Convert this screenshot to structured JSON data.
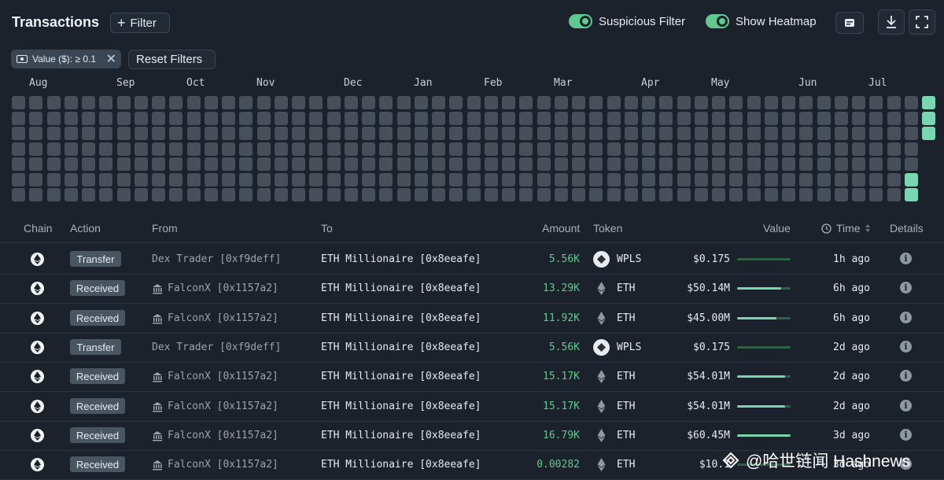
{
  "header": {
    "title": "Transactions",
    "filter_label": "Filter",
    "suspicious_filter_label": "Suspicious Filter",
    "show_heatmap_label": "Show Heatmap",
    "suspicious_filter_on": true,
    "show_heatmap_on": true
  },
  "filters": {
    "chip_label": "Value ($): ≥ 0.1",
    "reset_label": "Reset Filters"
  },
  "heatmap": {
    "months": [
      "Aug",
      "Sep",
      "Oct",
      "Nov",
      "Dec",
      "Jan",
      "Feb",
      "Mar",
      "Apr",
      "May",
      "Jun",
      "Jul"
    ],
    "hot_color": "#7ad6b0",
    "empty_color": "#464f5a"
  },
  "table": {
    "headers": {
      "chain": "Chain",
      "action": "Action",
      "from": "From",
      "to": "To",
      "amount": "Amount",
      "token": "Token",
      "value": "Value",
      "time": "Time",
      "details": "Details"
    },
    "rows": [
      {
        "action": "Transfer",
        "from": "Dex Trader [0xf9deff]",
        "from_icon": "",
        "to": "ETH Millionaire [0x8eeafe]",
        "amount": "5.56K",
        "token": "WPLS",
        "value": "$0.175",
        "value_fraction": 0.0,
        "time": "1h ago"
      },
      {
        "action": "Received",
        "from": "FalconX [0x1157a2]",
        "from_icon": "bank-icon",
        "to": "ETH Millionaire [0x8eeafe]",
        "amount": "13.29K",
        "token": "ETH",
        "value": "$50.14M",
        "value_fraction": 0.83,
        "time": "6h ago"
      },
      {
        "action": "Received",
        "from": "FalconX [0x1157a2]",
        "from_icon": "bank-icon",
        "to": "ETH Millionaire [0x8eeafe]",
        "amount": "11.92K",
        "token": "ETH",
        "value": "$45.00M",
        "value_fraction": 0.74,
        "time": "6h ago"
      },
      {
        "action": "Transfer",
        "from": "Dex Trader [0xf9deff]",
        "from_icon": "",
        "to": "ETH Millionaire [0x8eeafe]",
        "amount": "5.56K",
        "token": "WPLS",
        "value": "$0.175",
        "value_fraction": 0.0,
        "time": "2d ago"
      },
      {
        "action": "Received",
        "from": "FalconX [0x1157a2]",
        "from_icon": "bank-icon",
        "to": "ETH Millionaire [0x8eeafe]",
        "amount": "15.17K",
        "token": "ETH",
        "value": "$54.01M",
        "value_fraction": 0.9,
        "time": "2d ago"
      },
      {
        "action": "Received",
        "from": "FalconX [0x1157a2]",
        "from_icon": "bank-icon",
        "to": "ETH Millionaire [0x8eeafe]",
        "amount": "15.17K",
        "token": "ETH",
        "value": "$54.01M",
        "value_fraction": 0.9,
        "time": "2d ago"
      },
      {
        "action": "Received",
        "from": "FalconX [0x1157a2]",
        "from_icon": "bank-icon",
        "to": "ETH Millionaire [0x8eeafe]",
        "amount": "16.79K",
        "token": "ETH",
        "value": "$60.45M",
        "value_fraction": 1.0,
        "time": "3d ago"
      },
      {
        "action": "Received",
        "from": "FalconX [0x1157a2]",
        "from_icon": "bank-icon",
        "to": "ETH Millionaire [0x8eeafe]",
        "amount": "0.00282",
        "token": "ETH",
        "value": "$10.1",
        "value_fraction": 0.0,
        "time": "3d ago"
      }
    ]
  },
  "watermark": "@哈世链闻 Hashnews",
  "colors": {
    "background": "#1b222c",
    "accent": "#61c88f",
    "amount": "#61c88f"
  }
}
